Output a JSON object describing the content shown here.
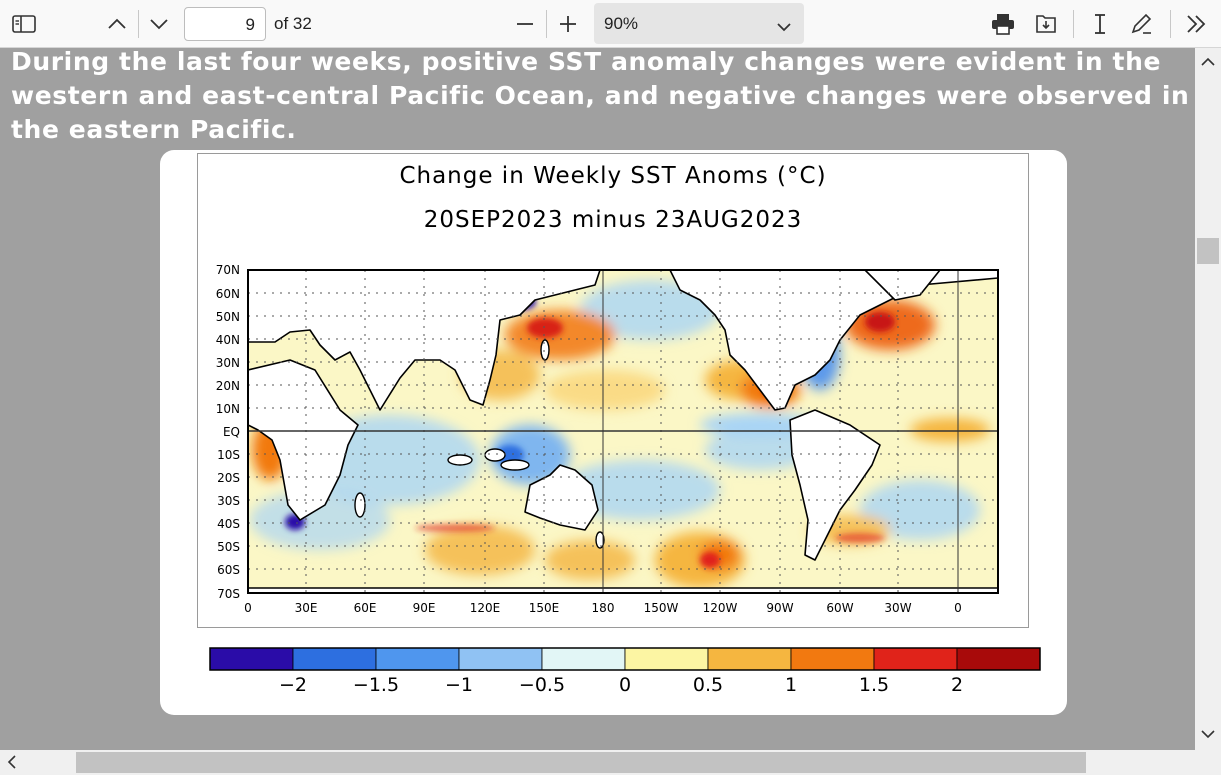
{
  "toolbar": {
    "page_current": "9",
    "page_total": "of 32",
    "zoom": "90%"
  },
  "icons": {
    "sidebar": "sidebar-toggle-icon",
    "prev": "chevron-up-icon",
    "next": "chevron-down-icon",
    "zoom_out": "minus-icon",
    "zoom_in": "plus-icon",
    "print": "printer-icon",
    "save": "save-icon",
    "text_select": "text-cursor-icon",
    "draw": "pen-icon",
    "more": "double-chevron-right-icon"
  },
  "document": {
    "paragraph": "During the last four weeks, positive SST anomaly changes were evident in the western and east-central Pacific Ocean, and negative changes were observed in the eastern Pacific."
  },
  "figure": {
    "title_line1": "Change in Weekly SST Anoms (°C)",
    "title_line2": "20SEP2023 minus 23AUG2023",
    "lat_labels": [
      "70N",
      "60N",
      "50N",
      "40N",
      "30N",
      "20N",
      "10N",
      "EQ",
      "10S",
      "20S",
      "30S",
      "40S",
      "50S",
      "60S",
      "70S"
    ],
    "lon_labels": [
      "0",
      "30E",
      "60E",
      "90E",
      "120E",
      "150E",
      "180",
      "150W",
      "120W",
      "90W",
      "60W",
      "30W",
      "0"
    ],
    "colorbar": {
      "ticks": [
        "−2",
        "−1.5",
        "−1",
        "−0.5",
        "0",
        "0.5",
        "1",
        "1.5",
        "2"
      ],
      "colors": [
        "#2a0ca8",
        "#2d6fe0",
        "#4f96ee",
        "#90c2f3",
        "#e2f6f6",
        "#fcf5a3",
        "#f5b640",
        "#f27910",
        "#e0231a",
        "#a80a0a"
      ]
    }
  },
  "chart_data": {
    "type": "heatmap",
    "title": "Change in Weekly SST Anoms (°C)",
    "subtitle": "20SEP2023 minus 23AUG2023",
    "xlabel": "",
    "ylabel": "",
    "x_ticks": [
      "0",
      "30E",
      "60E",
      "90E",
      "120E",
      "150E",
      "180",
      "150W",
      "120W",
      "90W",
      "60W",
      "30W",
      "0"
    ],
    "y_ticks": [
      "70N",
      "60N",
      "50N",
      "40N",
      "30N",
      "20N",
      "10N",
      "EQ",
      "10S",
      "20S",
      "30S",
      "40S",
      "50S",
      "60S",
      "70S"
    ],
    "color_scale_levels": [
      -2,
      -1.5,
      -1,
      -0.5,
      0,
      0.5,
      1,
      1.5,
      2
    ],
    "units": "°C",
    "regions": [
      {
        "lon": 155,
        "lat": 40,
        "value": 1.5
      },
      {
        "lon": -20,
        "lat": 45,
        "value": 1.5
      },
      {
        "lon": -135,
        "lat": 15,
        "value": 1.0
      },
      {
        "lon": -105,
        "lat": 20,
        "value": 1.5
      },
      {
        "lon": -60,
        "lat": 37,
        "value": -1.5
      },
      {
        "lon": 140,
        "lat": 55,
        "value": -1.5
      },
      {
        "lon": 20,
        "lat": -40,
        "value": -2.0
      },
      {
        "lon": -110,
        "lat": -55,
        "value": 1.0
      },
      {
        "lon": 120,
        "lat": -50,
        "value": 1.0
      },
      {
        "lon": -85,
        "lat": -5,
        "value": -0.5
      }
    ]
  }
}
